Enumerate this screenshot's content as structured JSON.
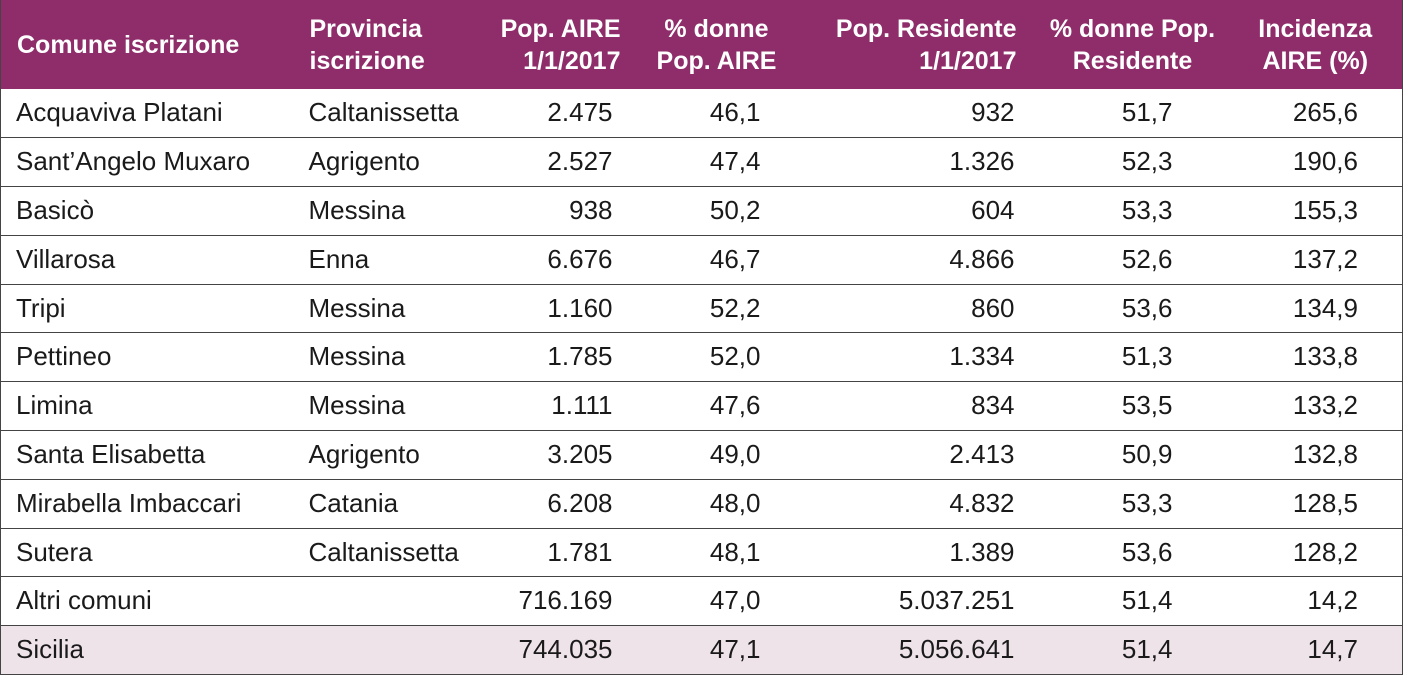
{
  "table": {
    "headers": [
      "Comune iscrizione",
      "Provincia iscrizione",
      "Pop. AIRE 1/1/2017",
      "% donne Pop. AIRE",
      "Pop. Residente 1/1/2017",
      "% donne Pop. Residente",
      "Incidenza AIRE (%)"
    ],
    "header_lines": [
      [
        "Comune iscrizione"
      ],
      [
        "Provincia",
        "iscrizione"
      ],
      [
        "Pop. AIRE",
        "1/1/2017"
      ],
      [
        "% donne",
        "Pop. AIRE"
      ],
      [
        "Pop. Residente",
        "1/1/2017"
      ],
      [
        "% donne Pop.",
        "Residente"
      ],
      [
        "Incidenza",
        "AIRE (%)"
      ]
    ],
    "rows": [
      [
        "Acquaviva Platani",
        "Caltanissetta",
        "2.475",
        "46,1",
        "932",
        "51,7",
        "265,6"
      ],
      [
        "Sant’Angelo Muxaro",
        "Agrigento",
        "2.527",
        "47,4",
        "1.326",
        "52,3",
        "190,6"
      ],
      [
        "Basicò",
        "Messina",
        "938",
        "50,2",
        "604",
        "53,3",
        "155,3"
      ],
      [
        "Villarosa",
        "Enna",
        "6.676",
        "46,7",
        "4.866",
        "52,6",
        "137,2"
      ],
      [
        "Tripi",
        "Messina",
        "1.160",
        "52,2",
        "860",
        "53,6",
        "134,9"
      ],
      [
        "Pettineo",
        "Messina",
        "1.785",
        "52,0",
        "1.334",
        "51,3",
        "133,8"
      ],
      [
        "Limina",
        "Messina",
        "1.111",
        "47,6",
        "834",
        "53,5",
        "133,2"
      ],
      [
        "Santa Elisabetta",
        "Agrigento",
        "3.205",
        "49,0",
        "2.413",
        "50,9",
        "132,8"
      ],
      [
        "Mirabella Imbaccari",
        "Catania",
        "6.208",
        "48,0",
        "4.832",
        "53,3",
        "128,5"
      ],
      [
        "Sutera",
        "Caltanissetta",
        "1.781",
        "48,1",
        "1.389",
        "53,6",
        "128,2"
      ],
      [
        "Altri comuni",
        "",
        "716.169",
        "47,0",
        "5.037.251",
        "51,4",
        "14,2"
      ],
      [
        "Sicilia",
        "",
        "744.035",
        "47,1",
        "5.056.641",
        "51,4",
        "14,7"
      ]
    ]
  },
  "colors": {
    "header_bg": "#8e2d6a",
    "header_text": "#ffffff",
    "total_row_bg": "#efe3ea",
    "border": "#444444"
  }
}
